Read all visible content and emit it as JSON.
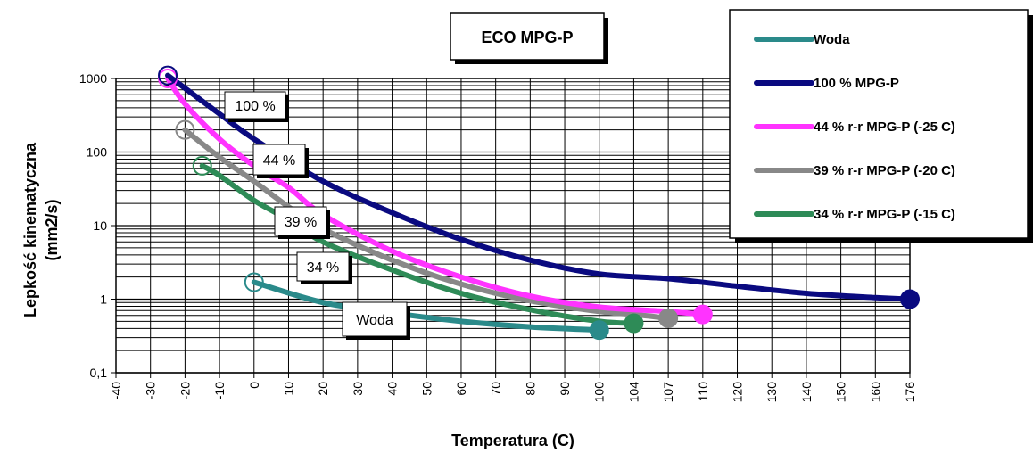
{
  "chart_data": {
    "type": "line",
    "title": "ECO MPG-P",
    "xlabel": "Temperatura (C)",
    "ylabel_line1": "Lepkość kinematyczna",
    "ylabel_line2": "(mm2/s)",
    "y_scale": "log",
    "ylim": [
      0.1,
      1000
    ],
    "grid": true,
    "legend_position": "top-right",
    "x_ticks": [
      "-40",
      "-30",
      "-20",
      "-10",
      "0",
      "10",
      "20",
      "30",
      "40",
      "50",
      "60",
      "70",
      "80",
      "90",
      "100",
      "104",
      "107",
      "110",
      "120",
      "130",
      "140",
      "150",
      "160",
      "176"
    ],
    "y_ticks": [
      "0,1",
      "1",
      "10",
      "100",
      "1000"
    ],
    "series": [
      {
        "name": "Woda",
        "color": "#2a8a8a",
        "points": [
          [
            0,
            1.7
          ],
          [
            20,
            0.9
          ],
          [
            40,
            0.65
          ],
          [
            60,
            0.5
          ],
          [
            80,
            0.42
          ],
          [
            100,
            0.38
          ]
        ]
      },
      {
        "name": "100 % MPG-P",
        "color": "#0a0a80",
        "points": [
          [
            -25,
            1100
          ],
          [
            -10,
            330
          ],
          [
            0,
            150
          ],
          [
            20,
            40
          ],
          [
            40,
            15
          ],
          [
            60,
            6.5
          ],
          [
            80,
            3.4
          ],
          [
            100,
            2.2
          ],
          [
            107,
            1.9
          ],
          [
            120,
            1.5
          ],
          [
            140,
            1.2
          ],
          [
            160,
            1.05
          ],
          [
            176,
            1.0
          ]
        ]
      },
      {
        "name": "44 % r-r MPG-P (-25 C)",
        "color": "#ff33ff",
        "points": [
          [
            -25,
            1000
          ],
          [
            -20,
            450
          ],
          [
            -10,
            150
          ],
          [
            0,
            65
          ],
          [
            10,
            33
          ],
          [
            20,
            14
          ],
          [
            40,
            4.5
          ],
          [
            60,
            2
          ],
          [
            80,
            1.1
          ],
          [
            100,
            0.78
          ],
          [
            107,
            0.68
          ],
          [
            110,
            0.62
          ]
        ]
      },
      {
        "name": "39 % r-r MPG-P (-20 C)",
        "color": "#888888",
        "points": [
          [
            -20,
            200
          ],
          [
            -10,
            85
          ],
          [
            0,
            40
          ],
          [
            10,
            18
          ],
          [
            20,
            9
          ],
          [
            40,
            3.4
          ],
          [
            60,
            1.6
          ],
          [
            80,
            0.95
          ],
          [
            100,
            0.68
          ],
          [
            104,
            0.62
          ],
          [
            107,
            0.55
          ]
        ]
      },
      {
        "name": "34 % r-r MPG-P (-15 C)",
        "color": "#2e8b57",
        "points": [
          [
            -15,
            65
          ],
          [
            -10,
            48
          ],
          [
            0,
            22
          ],
          [
            10,
            12
          ],
          [
            20,
            6
          ],
          [
            40,
            2.5
          ],
          [
            60,
            1.2
          ],
          [
            80,
            0.72
          ],
          [
            100,
            0.5
          ],
          [
            104,
            0.47
          ]
        ]
      }
    ],
    "annotations": [
      {
        "text": "100 %",
        "series": 1
      },
      {
        "text": "44 %",
        "series": 2
      },
      {
        "text": "39 %",
        "series": 3
      },
      {
        "text": "34 %",
        "series": 4
      },
      {
        "text": "Woda",
        "series": 0
      }
    ]
  }
}
